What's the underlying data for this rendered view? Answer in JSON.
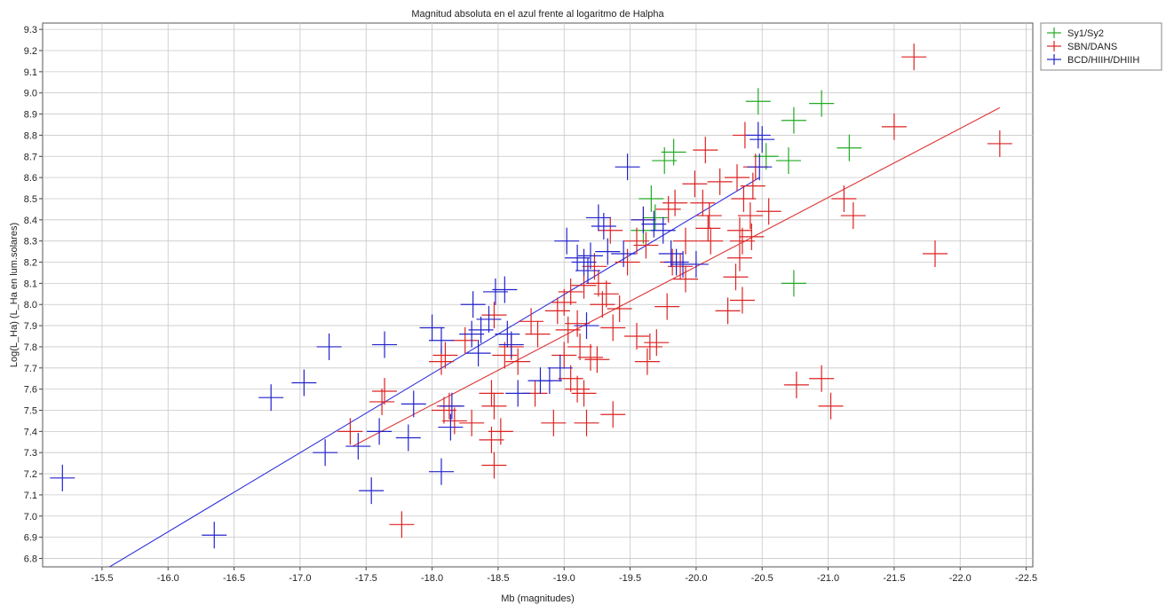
{
  "chart_data": {
    "type": "scatter",
    "title": "Magnitud absoluta en el azul frente al logaritmo de Halpha",
    "xlabel": "Mb (magnitudes)",
    "ylabel": "Log(L_Ha) (L_Ha en lum.solares)",
    "x_reversed": true,
    "xlim": [
      -15.05,
      -22.55
    ],
    "ylim": [
      6.76,
      9.33
    ],
    "x_ticks": [
      -15.5,
      -16.0,
      -16.5,
      -17.0,
      -17.5,
      -18.0,
      -18.5,
      -19.0,
      -19.5,
      -20.0,
      -20.5,
      -21.0,
      -21.5,
      -22.0,
      -22.5
    ],
    "x_tick_labels": [
      "-15.5",
      "-16.0",
      "-16.5",
      "-17.0",
      "-17.5",
      "-18.0",
      "-18.5",
      "-19.0",
      "-19.5",
      "-20.0",
      "-20.5",
      "-21.0",
      "-21.5",
      "-22.0",
      "-22.5"
    ],
    "y_ticks": [
      6.8,
      6.9,
      7.0,
      7.1,
      7.2,
      7.3,
      7.4,
      7.5,
      7.6,
      7.7,
      7.8,
      7.9,
      8.0,
      8.1,
      8.2,
      8.3,
      8.4,
      8.5,
      8.6,
      8.7,
      8.8,
      8.9,
      9.0,
      9.1,
      9.2,
      9.3
    ],
    "y_tick_labels": [
      "6.8",
      "6.9",
      "7.0",
      "7.1",
      "7.2",
      "7.3",
      "7.4",
      "7.5",
      "7.6",
      "7.7",
      "7.8",
      "7.9",
      "8.0",
      "8.1",
      "8.2",
      "8.3",
      "8.4",
      "8.5",
      "8.6",
      "8.7",
      "8.8",
      "8.9",
      "9.0",
      "9.1",
      "9.2",
      "9.3"
    ],
    "grid": true,
    "legend_position": "outside-top-right",
    "series": [
      {
        "name": "Sy1/Sy2",
        "color": "#22aa22",
        "marker": "cross-errorbar",
        "points": [
          [
            -20.47,
            8.96
          ],
          [
            -20.74,
            8.87
          ],
          [
            -20.95,
            8.95
          ],
          [
            -19.83,
            8.72
          ],
          [
            -19.76,
            8.68
          ],
          [
            -20.53,
            8.7
          ],
          [
            -20.7,
            8.68
          ],
          [
            -21.16,
            8.74
          ],
          [
            -19.66,
            8.5
          ],
          [
            -19.69,
            8.41
          ],
          [
            -20.74,
            8.1
          ],
          [
            -19.6,
            8.35
          ]
        ]
      },
      {
        "name": "SBN/DANS",
        "color": "#dd2222",
        "marker": "cross-errorbar",
        "points": [
          [
            -21.65,
            9.17
          ],
          [
            -21.5,
            8.84
          ],
          [
            -22.3,
            8.76
          ],
          [
            -21.12,
            8.5
          ],
          [
            -21.19,
            8.42
          ],
          [
            -21.81,
            8.24
          ],
          [
            -20.76,
            7.62
          ],
          [
            -20.95,
            7.65
          ],
          [
            -21.02,
            7.52
          ],
          [
            -20.07,
            8.73
          ],
          [
            -19.99,
            8.57
          ],
          [
            -20.18,
            8.58
          ],
          [
            -20.37,
            8.8
          ],
          [
            -20.45,
            8.65
          ],
          [
            -20.43,
            8.56
          ],
          [
            -20.31,
            8.6
          ],
          [
            -20.05,
            8.48
          ],
          [
            -20.1,
            8.42
          ],
          [
            -20.36,
            8.5
          ],
          [
            -20.41,
            8.42
          ],
          [
            -20.55,
            8.44
          ],
          [
            -20.33,
            8.35
          ],
          [
            -20.35,
            8.3
          ],
          [
            -20.42,
            8.32
          ],
          [
            -20.33,
            8.22
          ],
          [
            -20.11,
            8.3
          ],
          [
            -20.09,
            8.36
          ],
          [
            -19.79,
            8.45
          ],
          [
            -19.84,
            8.48
          ],
          [
            -19.92,
            8.3
          ],
          [
            -19.6,
            8.4
          ],
          [
            -19.55,
            8.3
          ],
          [
            -19.62,
            8.28
          ],
          [
            -19.88,
            8.18
          ],
          [
            -19.92,
            8.12
          ],
          [
            -20.3,
            8.13
          ],
          [
            -20.35,
            8.02
          ],
          [
            -20.24,
            7.97
          ],
          [
            -19.35,
            8.35
          ],
          [
            -19.32,
            8.05
          ],
          [
            -19.29,
            8.0
          ],
          [
            -19.26,
            8.1
          ],
          [
            -19.23,
            8.18
          ],
          [
            -19.15,
            8.09
          ],
          [
            -19.42,
            7.98
          ],
          [
            -19.37,
            7.89
          ],
          [
            -19.55,
            7.85
          ],
          [
            -19.65,
            7.8
          ],
          [
            -19.7,
            7.82
          ],
          [
            -19.63,
            7.73
          ],
          [
            -19.78,
            7.99
          ],
          [
            -19.82,
            8.2
          ],
          [
            -19.48,
            8.2
          ],
          [
            -19.05,
            8.06
          ],
          [
            -19.0,
            8.01
          ],
          [
            -18.95,
            7.97
          ],
          [
            -19.03,
            7.88
          ],
          [
            -19.1,
            7.91
          ],
          [
            -19.12,
            7.8
          ],
          [
            -19.0,
            7.76
          ],
          [
            -19.05,
            7.65
          ],
          [
            -19.1,
            7.6
          ],
          [
            -19.2,
            7.75
          ],
          [
            -19.15,
            7.58
          ],
          [
            -19.25,
            7.74
          ],
          [
            -18.92,
            7.44
          ],
          [
            -19.17,
            7.44
          ],
          [
            -19.37,
            7.48
          ],
          [
            -18.8,
            7.86
          ],
          [
            -18.75,
            7.92
          ],
          [
            -18.6,
            7.8
          ],
          [
            -18.55,
            7.76
          ],
          [
            -18.47,
            7.95
          ],
          [
            -18.45,
            7.58
          ],
          [
            -18.47,
            7.52
          ],
          [
            -18.52,
            7.4
          ],
          [
            -18.45,
            7.36
          ],
          [
            -18.47,
            7.24
          ],
          [
            -18.3,
            7.44
          ],
          [
            -18.13,
            7.52
          ],
          [
            -18.17,
            7.45
          ],
          [
            -18.09,
            7.5
          ],
          [
            -18.25,
            7.83
          ],
          [
            -18.1,
            7.76
          ],
          [
            -18.07,
            7.73
          ],
          [
            -17.77,
            6.96
          ],
          [
            -17.62,
            7.54
          ],
          [
            -17.64,
            7.59
          ],
          [
            -17.38,
            7.4
          ],
          [
            -18.65,
            7.73
          ],
          [
            -18.78,
            7.58
          ]
        ]
      },
      {
        "name": "BCD/HIIH/DHIIH",
        "color": "#2222cc",
        "marker": "cross-errorbar",
        "points": [
          [
            -15.2,
            7.18
          ],
          [
            -16.35,
            6.91
          ],
          [
            -16.78,
            7.56
          ],
          [
            -17.03,
            7.63
          ],
          [
            -17.22,
            7.8
          ],
          [
            -17.19,
            7.3
          ],
          [
            -17.44,
            7.33
          ],
          [
            -17.54,
            7.12
          ],
          [
            -17.6,
            7.4
          ],
          [
            -17.64,
            7.81
          ],
          [
            -17.82,
            7.37
          ],
          [
            -17.86,
            7.53
          ],
          [
            -18.07,
            7.21
          ],
          [
            -18.0,
            7.89
          ],
          [
            -18.07,
            7.83
          ],
          [
            -18.15,
            7.52
          ],
          [
            -18.14,
            7.42
          ],
          [
            -18.3,
            7.86
          ],
          [
            -18.31,
            8.0
          ],
          [
            -18.37,
            7.88
          ],
          [
            -18.43,
            7.93
          ],
          [
            -18.48,
            8.06
          ],
          [
            -18.55,
            8.07
          ],
          [
            -18.57,
            7.86
          ],
          [
            -18.6,
            7.81
          ],
          [
            -18.65,
            7.58
          ],
          [
            -18.82,
            7.64
          ],
          [
            -18.89,
            7.64
          ],
          [
            -18.97,
            7.7
          ],
          [
            -19.02,
            8.3
          ],
          [
            -19.1,
            8.22
          ],
          [
            -19.15,
            8.2
          ],
          [
            -19.18,
            8.16
          ],
          [
            -19.2,
            8.23
          ],
          [
            -19.26,
            8.41
          ],
          [
            -19.3,
            8.37
          ],
          [
            -19.33,
            8.25
          ],
          [
            -19.45,
            8.24
          ],
          [
            -19.48,
            8.65
          ],
          [
            -19.6,
            8.4
          ],
          [
            -19.68,
            8.38
          ],
          [
            -19.75,
            8.35
          ],
          [
            -19.81,
            8.24
          ],
          [
            -19.85,
            8.2
          ],
          [
            -19.9,
            8.19
          ],
          [
            -20.0,
            8.19
          ],
          [
            -20.47,
            8.8
          ],
          [
            -20.5,
            8.78
          ],
          [
            -20.48,
            8.65
          ],
          [
            -19.17,
            7.9
          ],
          [
            -18.35,
            7.77
          ]
        ]
      }
    ],
    "fit_lines": [
      {
        "series": "SBN/DANS",
        "color": "#dd3333",
        "from": [
          -17.4,
          7.33
        ],
        "to": [
          -22.3,
          8.93
        ]
      },
      {
        "series": "BCD/HIIH/DHIIH",
        "color": "#3333dd",
        "from": [
          -15.45,
          6.72
        ],
        "to": [
          -20.48,
          8.6
        ]
      }
    ]
  }
}
